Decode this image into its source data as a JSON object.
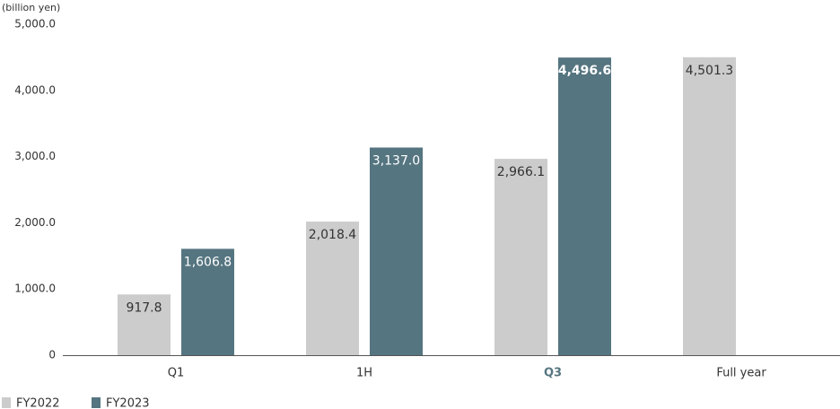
{
  "chart_data": {
    "type": "bar",
    "y_axis_label": "(billion yen)",
    "categories": [
      "Q1",
      "1H",
      "Q3",
      "Full year"
    ],
    "series": [
      {
        "name": "FY2022",
        "color": "#cccccc",
        "values": [
          917.8,
          2018.4,
          2966.1,
          4501.3
        ],
        "value_labels": [
          "917.8",
          "2,018.4",
          "2,966.1",
          "4,501.3"
        ]
      },
      {
        "name": "FY2023",
        "color": "#557580",
        "values": [
          1606.8,
          3137.0,
          4496.6,
          null
        ],
        "value_labels": [
          "1,606.8",
          "3,137.0",
          "4,496.6",
          null
        ]
      }
    ],
    "ylim": [
      0,
      5000
    ],
    "yticks": [
      0,
      {
        "value": 1000,
        "label": "1,000.0"
      },
      {
        "value": 2000,
        "label": "2,000.0"
      },
      {
        "value": 3000,
        "label": "3,000.0"
      },
      {
        "value": 4000,
        "label": "4,000.0"
      },
      {
        "value": 5000,
        "label": "5,000.0"
      }
    ],
    "grid": false,
    "legend": "bottom-left"
  }
}
